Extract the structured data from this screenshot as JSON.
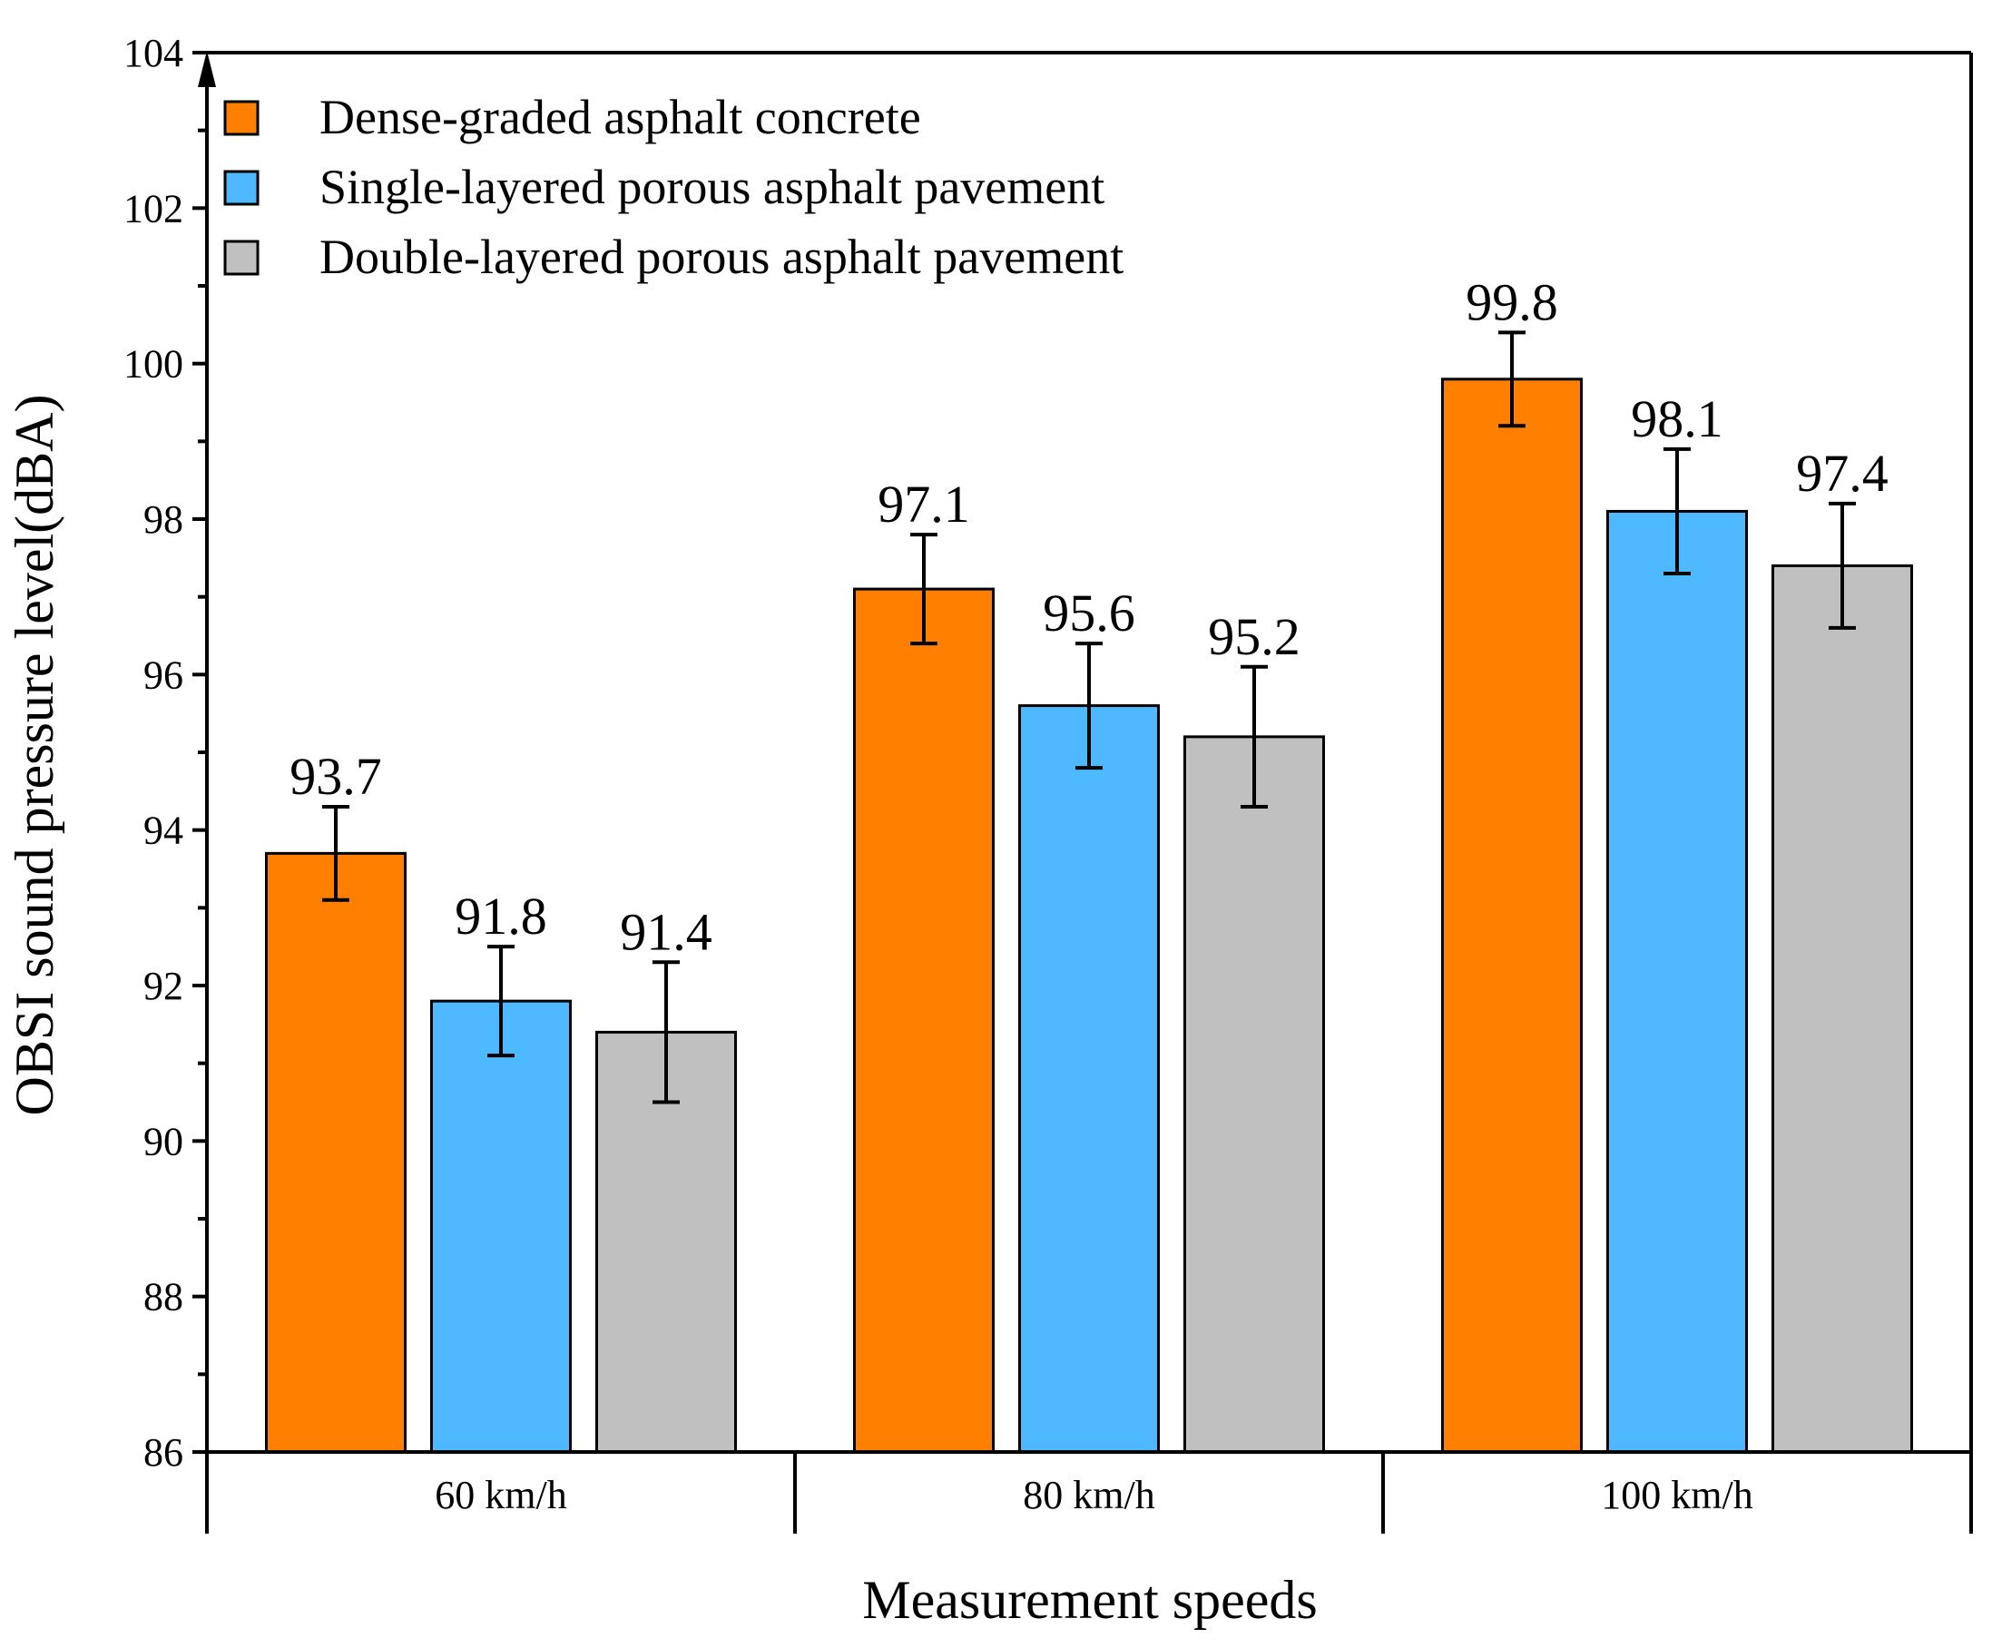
{
  "chart_data": {
    "type": "bar",
    "title": "",
    "xlabel": "Measurement speeds",
    "ylabel": "OBSI sound pressure level(dBA)",
    "ylim": [
      86,
      104
    ],
    "yticks": [
      "86",
      "88",
      "90",
      "92",
      "94",
      "96",
      "98",
      "100",
      "102",
      "104"
    ],
    "categories": [
      "60 km/h",
      "80 km/h",
      "100 km/h"
    ],
    "legend_position": "top-left",
    "grid": false,
    "series": [
      {
        "name": "Dense-graded asphalt concrete",
        "color": "#FF8000",
        "values": [
          93.7,
          97.1,
          99.8
        ],
        "labels": [
          "93.7",
          "97.1",
          "99.8"
        ],
        "error_low": [
          93.1,
          96.4,
          99.2
        ],
        "error_high": [
          94.3,
          97.8,
          100.4
        ]
      },
      {
        "name": "Single-layered porous asphalt pavement",
        "color": "#4FB9FF",
        "values": [
          91.8,
          95.6,
          98.1
        ],
        "labels": [
          "91.8",
          "95.6",
          "98.1"
        ],
        "error_low": [
          91.1,
          94.8,
          97.3
        ],
        "error_high": [
          92.5,
          96.4,
          98.9
        ]
      },
      {
        "name": "Double-layered porous asphalt pavement",
        "color": "#C0C0C0",
        "values": [
          91.4,
          95.2,
          97.4
        ],
        "labels": [
          "91.4",
          "95.2",
          "97.4"
        ],
        "error_low": [
          90.5,
          94.3,
          96.6
        ],
        "error_high": [
          92.3,
          96.1,
          98.2
        ]
      }
    ]
  }
}
